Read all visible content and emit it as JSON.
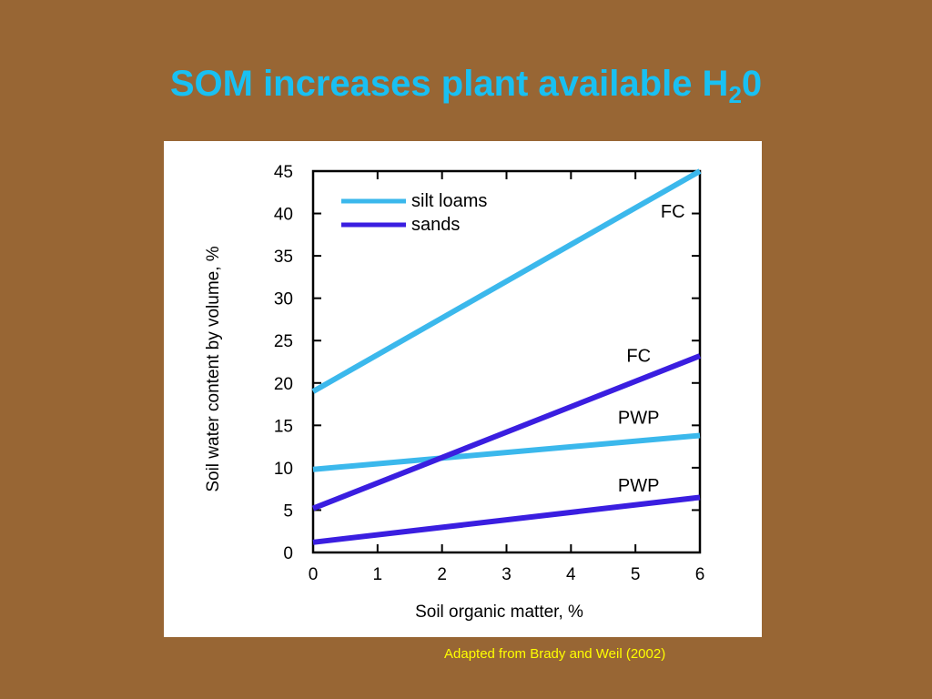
{
  "slide": {
    "title_main": "SOM increases plant available H",
    "title_sub": "2",
    "title_tail": "0",
    "credit": "Adapted from Brady and Weil (2002)"
  },
  "colors": {
    "background": "#986634",
    "title": "#19c0f2",
    "credit": "#ffff00",
    "silt_loams": "#3bb8ec",
    "sands": "#3a1ee0"
  },
  "chart_data": {
    "type": "line",
    "title": "",
    "xlabel": "Soil organic matter, %",
    "ylabel": "Soil water content by volume, %",
    "xlim": [
      0,
      6
    ],
    "ylim": [
      0,
      45
    ],
    "xticks": [
      "0",
      "1",
      "2",
      "3",
      "4",
      "5",
      "6"
    ],
    "yticks": [
      "0",
      "5",
      "10",
      "15",
      "20",
      "25",
      "30",
      "35",
      "40",
      "45"
    ],
    "grid": false,
    "legend": {
      "position": "top-left",
      "entries": [
        {
          "label": "silt loams",
          "color": "#3bb8ec"
        },
        {
          "label": "sands",
          "color": "#3a1ee0"
        }
      ]
    },
    "series": [
      {
        "group": "silt loams",
        "label": "FC",
        "color": "#3bb8ec",
        "x": [
          0,
          6
        ],
        "y": [
          19,
          45
        ]
      },
      {
        "group": "silt loams",
        "label": "PWP",
        "color": "#3bb8ec",
        "x": [
          0,
          6
        ],
        "y": [
          9.8,
          13.8
        ]
      },
      {
        "group": "sands",
        "label": "FC",
        "color": "#3a1ee0",
        "x": [
          0,
          6
        ],
        "y": [
          5.2,
          23.2
        ]
      },
      {
        "group": "sands",
        "label": "PWP",
        "color": "#3a1ee0",
        "x": [
          0,
          6
        ],
        "y": [
          1.2,
          6.5
        ]
      }
    ]
  }
}
